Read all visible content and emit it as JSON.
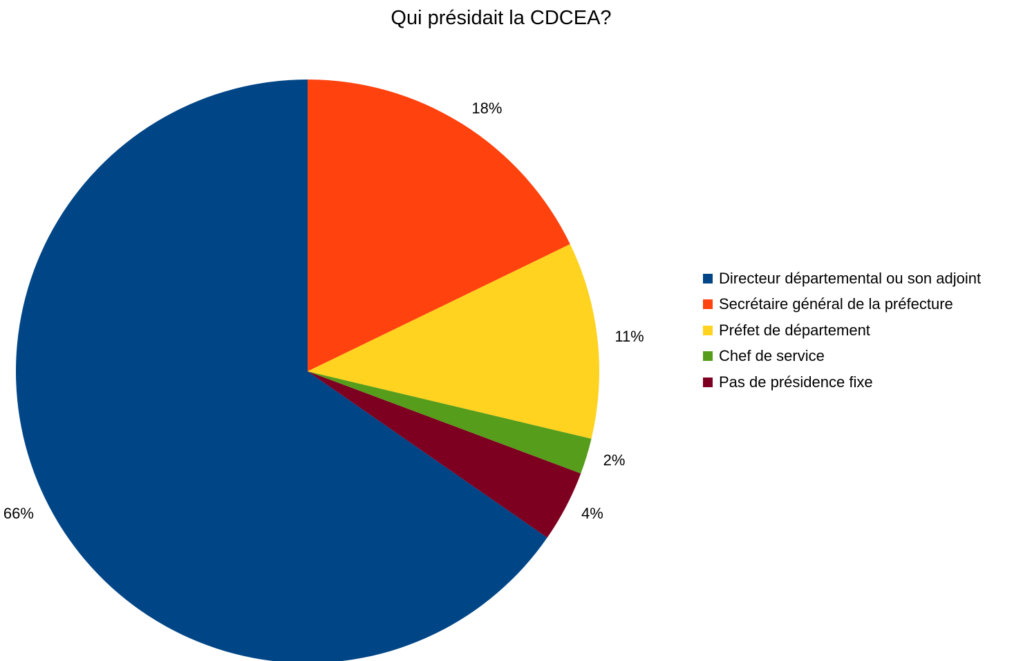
{
  "chart_data": {
    "type": "pie",
    "title": "Qui présidait la CDCEA?",
    "legend_position": "right",
    "slices": [
      {
        "name": "Directeur départemental ou son adjoint",
        "value": 66,
        "label": "66%",
        "color": "#004586"
      },
      {
        "name": "Secrétaire général de la préfecture",
        "value": 18,
        "label": "18%",
        "color": "#ff420e"
      },
      {
        "name": "Préfet de département",
        "value": 11,
        "label": "11%",
        "color": "#ffd320"
      },
      {
        "name": "Chef de service",
        "value": 2,
        "label": "2%",
        "color": "#579d1c"
      },
      {
        "name": "Pas de présidence fixe",
        "value": 4,
        "label": "4%",
        "color": "#7e0021"
      }
    ]
  }
}
